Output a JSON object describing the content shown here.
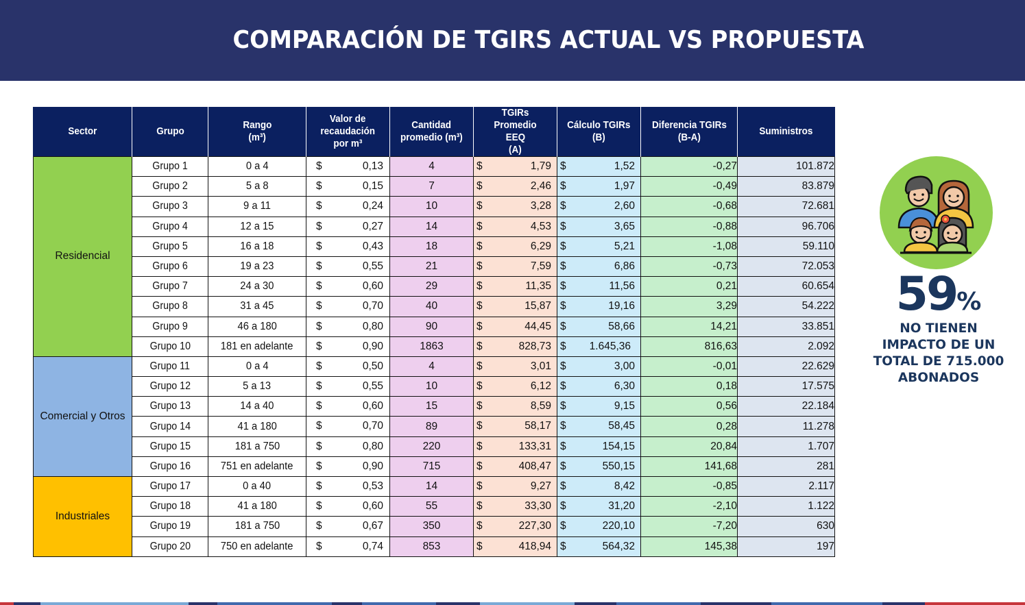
{
  "header": {
    "title": "COMPARACIÓN DE TGIRS ACTUAL VS PROPUESTA"
  },
  "table": {
    "columns": {
      "sector": "Sector",
      "grupo": "Grupo",
      "rango_1": "Rango",
      "rango_2": "(m³)",
      "valor_1": "Valor de",
      "valor_2": "recaudación",
      "valor_3": "por m³",
      "cantidad_1": "Cantidad",
      "cantidad_2": "promedio (m³)",
      "tgirs_a_1": "TGIRs Promedio",
      "tgirs_a_2": "EEQ",
      "tgirs_a_3": "(A)",
      "tgirs_b_1": "Cálculo TGIRs",
      "tgirs_b_2": "(B)",
      "diferencia_1": "Diferencia TGIRs",
      "diferencia_2": "(B-A)",
      "suministros": "Suministros"
    },
    "currency": "$",
    "sectors": [
      {
        "label": "Residencial",
        "color": "#92d050"
      },
      {
        "label": "Comercial y Otros",
        "color": "#8eb4e3"
      },
      {
        "label": "Industriales",
        "color": "#ffc000"
      }
    ],
    "rows": [
      {
        "grupo": "Grupo 1",
        "rango": "0 a 4",
        "valor": "0,13",
        "cantidad": "4",
        "tgirs_a": "1,79",
        "tgirs_b": "1,52",
        "diferencia": "-0,27",
        "suministros": "101.872"
      },
      {
        "grupo": "Grupo 2",
        "rango": "5 a 8",
        "valor": "0,15",
        "cantidad": "7",
        "tgirs_a": "2,46",
        "tgirs_b": "1,97",
        "diferencia": "-0,49",
        "suministros": "83.879"
      },
      {
        "grupo": "Grupo 3",
        "rango": "9 a 11",
        "valor": "0,24",
        "cantidad": "10",
        "tgirs_a": "3,28",
        "tgirs_b": "2,60",
        "diferencia": "-0,68",
        "suministros": "72.681"
      },
      {
        "grupo": "Grupo 4",
        "rango": "12 a 15",
        "valor": "0,27",
        "cantidad": "14",
        "tgirs_a": "4,53",
        "tgirs_b": "3,65",
        "diferencia": "-0,88",
        "suministros": "96.706"
      },
      {
        "grupo": "Grupo 5",
        "rango": "16 a 18",
        "valor": "0,43",
        "cantidad": "18",
        "tgirs_a": "6,29",
        "tgirs_b": "5,21",
        "diferencia": "-1,08",
        "suministros": "59.110"
      },
      {
        "grupo": "Grupo 6",
        "rango": "19 a 23",
        "valor": "0,55",
        "cantidad": "21",
        "tgirs_a": "7,59",
        "tgirs_b": "6,86",
        "diferencia": "-0,73",
        "suministros": "72.053"
      },
      {
        "grupo": "Grupo 7",
        "rango": "24 a 30",
        "valor": "0,60",
        "cantidad": "29",
        "tgirs_a": "11,35",
        "tgirs_b": "11,56",
        "diferencia": "0,21",
        "suministros": "60.654"
      },
      {
        "grupo": "Grupo 8",
        "rango": "31 a 45",
        "valor": "0,70",
        "cantidad": "40",
        "tgirs_a": "15,87",
        "tgirs_b": "19,16",
        "diferencia": "3,29",
        "suministros": "54.222"
      },
      {
        "grupo": "Grupo 9",
        "rango": "46 a 180",
        "valor": "0,80",
        "cantidad": "90",
        "tgirs_a": "44,45",
        "tgirs_b": "58,66",
        "diferencia": "14,21",
        "suministros": "33.851"
      },
      {
        "grupo": "Grupo 10",
        "rango": "181 en adelante",
        "valor": "0,90",
        "cantidad": "1863",
        "tgirs_a": "828,73",
        "tgirs_b": "1.645,36",
        "diferencia": "816,63",
        "suministros": "2.092"
      },
      {
        "grupo": "Grupo 11",
        "rango": "0 a 4",
        "valor": "0,50",
        "cantidad": "4",
        "tgirs_a": "3,01",
        "tgirs_b": "3,00",
        "diferencia": "-0,01",
        "suministros": "22.629"
      },
      {
        "grupo": "Grupo 12",
        "rango": "5 a 13",
        "valor": "0,55",
        "cantidad": "10",
        "tgirs_a": "6,12",
        "tgirs_b": "6,30",
        "diferencia": "0,18",
        "suministros": "17.575"
      },
      {
        "grupo": "Grupo 13",
        "rango": "14 a 40",
        "valor": "0,60",
        "cantidad": "15",
        "tgirs_a": "8,59",
        "tgirs_b": "9,15",
        "diferencia": "0,56",
        "suministros": "22.184"
      },
      {
        "grupo": "Grupo 14",
        "rango": "41 a 180",
        "valor": "0,70",
        "cantidad": "89",
        "tgirs_a": "58,17",
        "tgirs_b": "58,45",
        "diferencia": "0,28",
        "suministros": "11.278"
      },
      {
        "grupo": "Grupo 15",
        "rango": "181 a 750",
        "valor": "0,80",
        "cantidad": "220",
        "tgirs_a": "133,31",
        "tgirs_b": "154,15",
        "diferencia": "20,84",
        "suministros": "1.707"
      },
      {
        "grupo": "Grupo 16",
        "rango": "751 en adelante",
        "valor": "0,90",
        "cantidad": "715",
        "tgirs_a": "408,47",
        "tgirs_b": "550,15",
        "diferencia": "141,68",
        "suministros": "281"
      },
      {
        "grupo": "Grupo 17",
        "rango": "0 a 40",
        "valor": "0,53",
        "cantidad": "14",
        "tgirs_a": "9,27",
        "tgirs_b": "8,42",
        "diferencia": "-0,85",
        "suministros": "2.117"
      },
      {
        "grupo": "Grupo 18",
        "rango": "41 a 180",
        "valor": "0,60",
        "cantidad": "55",
        "tgirs_a": "33,30",
        "tgirs_b": "31,20",
        "diferencia": "-2,10",
        "suministros": "1.122"
      },
      {
        "grupo": "Grupo 19",
        "rango": "181 a 750",
        "valor": "0,67",
        "cantidad": "350",
        "tgirs_a": "227,30",
        "tgirs_b": "220,10",
        "diferencia": "-7,20",
        "suministros": "630"
      },
      {
        "grupo": "Grupo 20",
        "rango": "750 en adelante",
        "valor": "0,74",
        "cantidad": "853",
        "tgirs_a": "418,94",
        "tgirs_b": "564,32",
        "diferencia": "145,38",
        "suministros": "197"
      }
    ]
  },
  "sidebar": {
    "icon": "family-icon",
    "percentage": "59",
    "percent_sign": "%",
    "text_lines": [
      "NO TIENEN",
      "IMPACTO DE UN",
      "TOTAL DE 715.000",
      "ABONADOS"
    ]
  },
  "colors": {
    "banner": "#29336a",
    "table_header": "#0b2060",
    "cantidad_bg": "#eecfee",
    "tgirs_a_bg": "#fce1d4",
    "tgirs_b_bg": "#cdebf9",
    "diferencia_bg": "#c6efcc",
    "suministros_bg": "#dde5f0",
    "highlight_text": "#1b365d"
  }
}
